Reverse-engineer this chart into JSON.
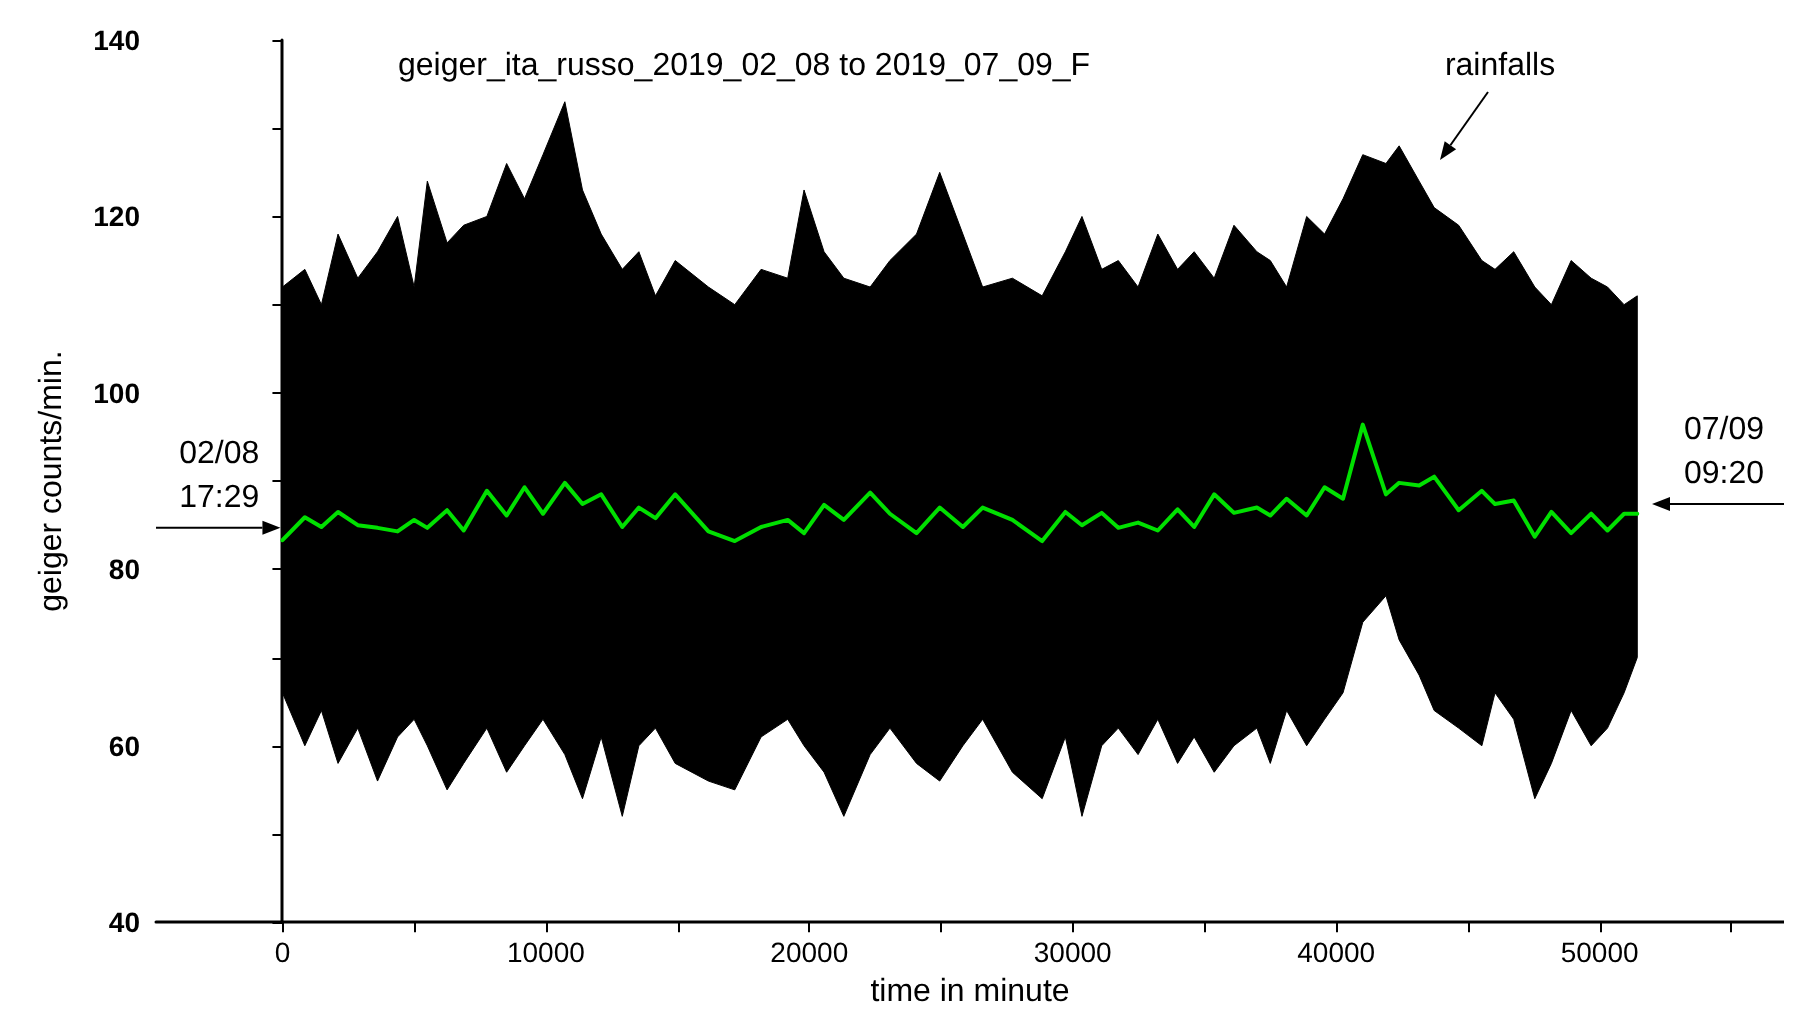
{
  "chart_data": {
    "type": "line",
    "title": "geiger_ita_russo_2019_02_08 to 2019_07_09_F",
    "xlabel": "time in minute",
    "ylabel": "geiger counts/min.",
    "xlim": [
      -4800,
      57000
    ],
    "xticks": [
      0,
      {
        "value": 5000,
        "label": null
      },
      10000,
      {
        "value": 15000,
        "label": null
      },
      20000,
      {
        "value": 25000,
        "label": null
      },
      30000,
      {
        "value": 35000,
        "label": null
      },
      40000,
      {
        "value": 45000,
        "label": null
      },
      50000,
      {
        "value": 55000,
        "label": null
      }
    ],
    "ylim": [
      40,
      140
    ],
    "yticks": [
      40,
      {
        "value": 50,
        "label": null
      },
      60,
      {
        "value": 70,
        "label": null
      },
      80,
      {
        "value": 90,
        "label": null
      },
      100,
      {
        "value": 110,
        "label": null
      },
      120,
      {
        "value": 130,
        "label": null
      },
      140
    ],
    "marker": "none",
    "line_style": "solid",
    "series": [
      {
        "color": "#00e000",
        "x": [
          0,
          850,
          1480,
          2110,
          2860,
          3610,
          4370,
          5000,
          5500,
          6250,
          6880,
          7760,
          8510,
          9190,
          9890,
          10720,
          11390,
          12100,
          12900,
          13530,
          14160,
          14910,
          16170,
          17170,
          18170,
          19180,
          19800,
          20560,
          21310,
          22310,
          23060,
          24070,
          24950,
          25830,
          26580,
          27710,
          28840,
          29720,
          30350,
          31100,
          31730,
          32480,
          33230,
          33980,
          34610,
          35370,
          36120,
          36990,
          37500,
          38120,
          38880,
          39560,
          40260,
          41010,
          41890,
          42390,
          43150,
          43720,
          44650,
          45530,
          46030,
          46740,
          47540,
          48170,
          48920,
          49680,
          50300,
          50930,
          51430
        ],
        "values": [
          83.3,
          85.9,
          84.8,
          86.5,
          85.0,
          84.7,
          84.3,
          85.6,
          84.7,
          86.7,
          84.4,
          88.9,
          86.1,
          89.3,
          86.3,
          89.8,
          87.4,
          88.5,
          84.8,
          87.0,
          85.8,
          88.5,
          84.3,
          83.2,
          84.8,
          85.6,
          84.1,
          87.3,
          85.6,
          88.7,
          86.3,
          84.1,
          87.0,
          84.8,
          87.0,
          85.6,
          83.2,
          86.5,
          85.0,
          86.4,
          84.7,
          85.3,
          84.4,
          86.8,
          84.8,
          88.5,
          86.4,
          87.0,
          86.1,
          88.0,
          86.1,
          89.3,
          88.0,
          96.4,
          88.5,
          89.8,
          89.5,
          90.5,
          86.7,
          88.9,
          87.4,
          87.8,
          83.7,
          86.5,
          84.1,
          86.3,
          84.4,
          86.3,
          86.3
        ],
        "upper": [
          112,
          114,
          110,
          118,
          113,
          116,
          120,
          112,
          124,
          117,
          119,
          120,
          126,
          122,
          127,
          133,
          123,
          118,
          114,
          116,
          111,
          115,
          112,
          110,
          114,
          113,
          123,
          116,
          113,
          112,
          115,
          118,
          125,
          118,
          112,
          113,
          111,
          116,
          120,
          114,
          115,
          112,
          118,
          114,
          116,
          113,
          119,
          116,
          115,
          112,
          120,
          118,
          122,
          127,
          126,
          128,
          124,
          121,
          119,
          115,
          114,
          116,
          112,
          110,
          115,
          113,
          112,
          110,
          111
        ],
        "lower": [
          66,
          60,
          64,
          58,
          62,
          56,
          61,
          63,
          60,
          55,
          58,
          62,
          57,
          60,
          63,
          59,
          54,
          61,
          52,
          60,
          62,
          58,
          56,
          55,
          61,
          63,
          60,
          57,
          52,
          59,
          62,
          58,
          56,
          60,
          63,
          57,
          54,
          61,
          52,
          60,
          62,
          59,
          63,
          58,
          61,
          57,
          60,
          62,
          58,
          64,
          60,
          63,
          66,
          74,
          77,
          72,
          68,
          64,
          62,
          60,
          66,
          63,
          54,
          58,
          64,
          60,
          62,
          66,
          70
        ]
      }
    ],
    "annotations": [
      "rainfalls",
      {
        "text": "02/08\n17:29",
        "x": 0,
        "y": 84.7
      },
      "07/09\n09:20"
    ]
  }
}
